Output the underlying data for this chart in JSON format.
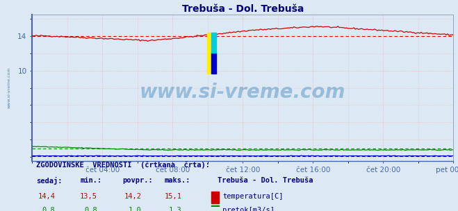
{
  "title": "Trebuša - Dol. Trebuša",
  "title_color": "#000080",
  "bg_color": "#dce9f5",
  "plot_bg_color": "#dce9f5",
  "grid_color": "#ffaaaa",
  "grid_linestyle": ":",
  "watermark_text": "www.si-vreme.com",
  "watermark_color": "#4488bb",
  "watermark_alpha": 0.45,
  "ylabel_color": "#4466aa",
  "xlabel_color": "#4466aa",
  "left_label": "www.si-vreme.com",
  "xlim": [
    0,
    288
  ],
  "ylim": [
    -0.5,
    16.5
  ],
  "yticks": [
    10,
    14
  ],
  "xtick_labels": [
    "čet 04:00",
    "čet 08:00",
    "čet 12:00",
    "čet 16:00",
    "čet 20:00",
    "pet 00:00"
  ],
  "xtick_positions": [
    48,
    96,
    144,
    192,
    240,
    288
  ],
  "temp_color": "#cc0000",
  "flow_color": "#008800",
  "height_color": "#0000cc",
  "legend_title": "Trebuša - Dol. Trebuša",
  "legend_color": "#000080",
  "footer_color": "#000080",
  "temp_current": "14,4",
  "temp_min": "13,5",
  "temp_avg": "14,2",
  "temp_max": "15,1",
  "flow_current": "0,8",
  "flow_min": "0,8",
  "flow_avg": "1,0",
  "flow_max": "1,3"
}
